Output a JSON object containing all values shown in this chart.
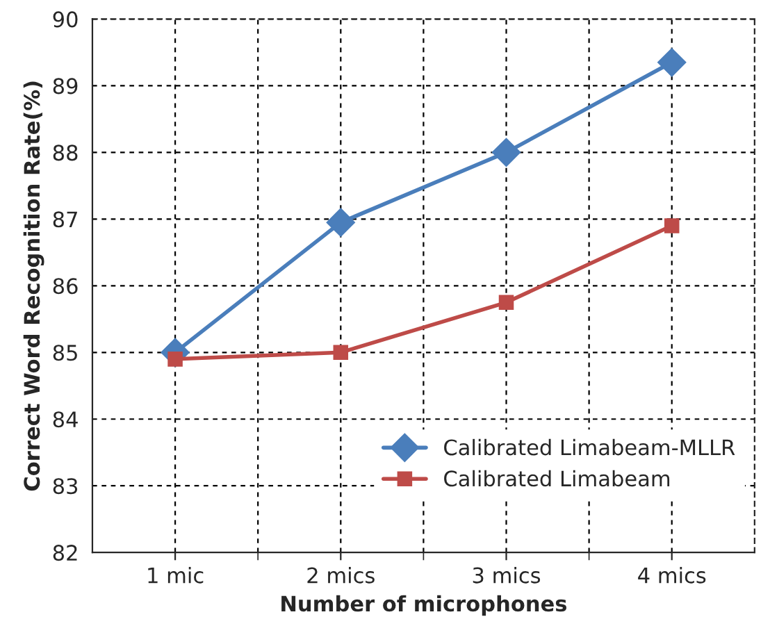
{
  "chart_data": {
    "type": "line",
    "xlabel": "Number of microphones",
    "ylabel": "Correct Word Recognition Rate(%)",
    "categories": [
      "1 mic",
      "2 mics",
      "3 mics",
      "4 mics"
    ],
    "series": [
      {
        "name": "Calibrated Limabeam-MLLR",
        "color": "#4a7ebb",
        "marker": "diamond",
        "values": [
          85.0,
          86.95,
          88.0,
          89.35
        ]
      },
      {
        "name": "Calibrated Limabeam",
        "color": "#be4b48",
        "marker": "square",
        "values": [
          84.9,
          85.0,
          85.75,
          86.9
        ]
      }
    ],
    "ylim": [
      82,
      90
    ],
    "yticks": [
      82,
      83,
      84,
      85,
      86,
      87,
      88,
      89,
      90
    ],
    "grid": true,
    "legend": "bottom right",
    "line_style": "solid"
  }
}
